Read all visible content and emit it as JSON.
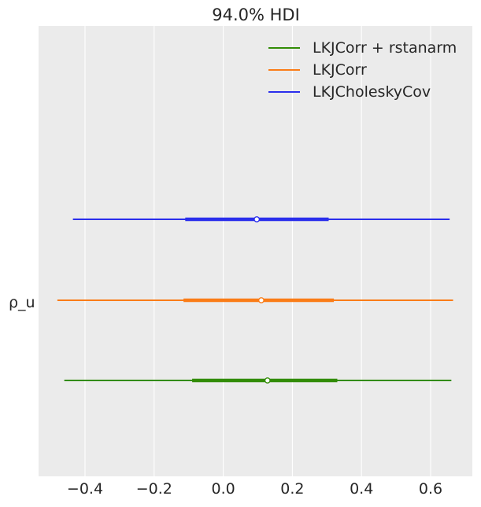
{
  "chart_data": {
    "type": "forest",
    "title": "94.0% HDI",
    "xlabel": "",
    "ylabel": "",
    "xlim": [
      -0.54,
      0.72
    ],
    "x_ticks": [
      -0.4,
      -0.2,
      0.0,
      0.2,
      0.4,
      0.6
    ],
    "x_tick_labels": [
      "−0.4",
      "−0.2",
      "0.0",
      "0.2",
      "0.4",
      "0.6"
    ],
    "grid": true,
    "legend_position": "top-right",
    "variable": "ρ_u",
    "series": [
      {
        "name": "LKJCholeskyCov",
        "color": "#2a2eec",
        "hdi_low": -0.435,
        "hdi_high": 0.655,
        "iqr_low": -0.11,
        "iqr_high": 0.305,
        "point": 0.097
      },
      {
        "name": "LKJCorr",
        "color": "#fa7c17",
        "hdi_low": -0.48,
        "hdi_high": 0.665,
        "iqr_low": -0.115,
        "iqr_high": 0.32,
        "point": 0.11
      },
      {
        "name": "LKJCorr + rstanarm",
        "color": "#328c06",
        "hdi_low": -0.46,
        "hdi_high": 0.66,
        "iqr_low": -0.09,
        "iqr_high": 0.33,
        "point": 0.128
      }
    ],
    "legend_order": [
      "LKJCorr + rstanarm",
      "LKJCorr",
      "LKJCholeskyCov"
    ]
  }
}
